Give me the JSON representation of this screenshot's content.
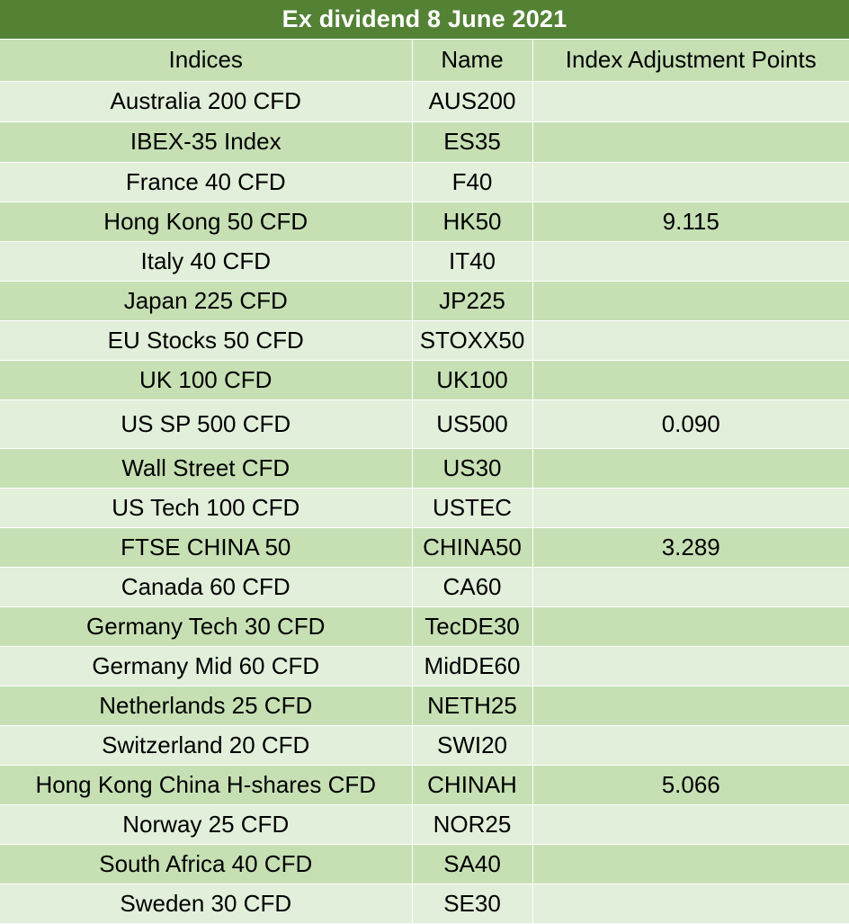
{
  "title": "Ex dividend 8 June 2021",
  "colors": {
    "title_background": "#548235",
    "row_dark": "#c6e0b4",
    "row_light": "#e2efda",
    "text": "#000000",
    "title_text": "#ffffff"
  },
  "columns": [
    "Indices",
    "Name",
    "Index Adjustment Points"
  ],
  "rows": [
    {
      "index": "Australia 200 CFD",
      "name": "AUS200",
      "points": ""
    },
    {
      "index": "IBEX-35 Index",
      "name": "ES35",
      "points": ""
    },
    {
      "index": "France 40 CFD",
      "name": "F40",
      "points": ""
    },
    {
      "index": "Hong Kong 50 CFD",
      "name": "HK50",
      "points": "9.115"
    },
    {
      "index": "Italy 40 CFD",
      "name": "IT40",
      "points": ""
    },
    {
      "index": "Japan 225 CFD",
      "name": "JP225",
      "points": ""
    },
    {
      "index": "EU Stocks 50 CFD",
      "name": "STOXX50",
      "points": ""
    },
    {
      "index": "UK 100 CFD",
      "name": "UK100",
      "points": ""
    },
    {
      "index": "US SP 500 CFD",
      "name": "US500",
      "points": "0.090"
    },
    {
      "index": "Wall Street CFD",
      "name": "US30",
      "points": ""
    },
    {
      "index": "US Tech 100 CFD",
      "name": "USTEC",
      "points": ""
    },
    {
      "index": "FTSE CHINA 50",
      "name": "CHINA50",
      "points": "3.289"
    },
    {
      "index": "Canada 60 CFD",
      "name": "CA60",
      "points": ""
    },
    {
      "index": "Germany Tech 30 CFD",
      "name": "TecDE30",
      "points": ""
    },
    {
      "index": "Germany Mid 60 CFD",
      "name": "MidDE60",
      "points": ""
    },
    {
      "index": "Netherlands 25 CFD",
      "name": "NETH25",
      "points": ""
    },
    {
      "index": "Switzerland 20 CFD",
      "name": "SWI20",
      "points": ""
    },
    {
      "index": "Hong Kong China H-shares CFD",
      "name": "CHINAH",
      "points": "5.066"
    },
    {
      "index": "Norway 25 CFD",
      "name": "NOR25",
      "points": ""
    },
    {
      "index": "South Africa 40 CFD",
      "name": "SA40",
      "points": ""
    },
    {
      "index": "Sweden 30 CFD",
      "name": "SE30",
      "points": ""
    }
  ]
}
